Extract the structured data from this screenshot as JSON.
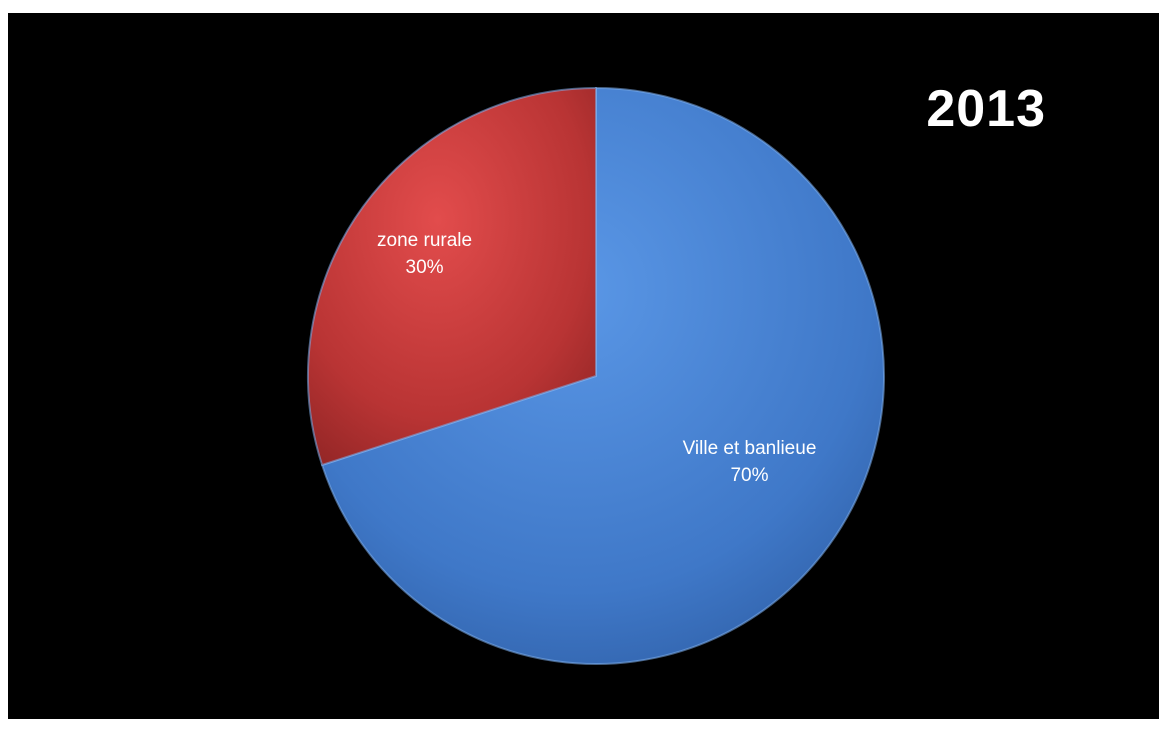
{
  "chart_data": {
    "type": "pie",
    "title": "2013",
    "slices": [
      {
        "label": "Ville et banlieue",
        "value": 70,
        "value_label": "70%",
        "color": "#4a86d8"
      },
      {
        "label": "zone rurale",
        "value": 30,
        "value_label": "30%",
        "color": "#d94040"
      }
    ],
    "background": "#000000"
  }
}
